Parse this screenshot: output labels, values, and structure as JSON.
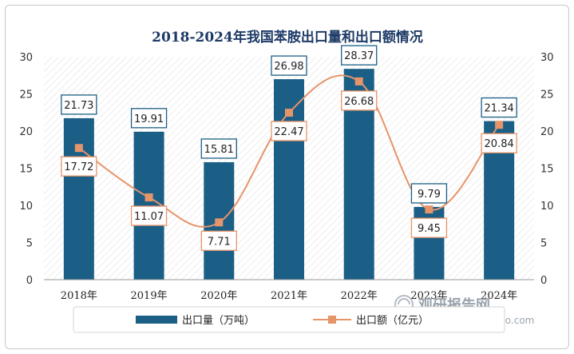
{
  "chart_data": {
    "type": "bar",
    "title": "2018-2024年我国苯胺出口量和出口额情况",
    "categories": [
      "2018年",
      "2019年",
      "2020年",
      "2021年",
      "2022年",
      "2023年",
      "2024年"
    ],
    "series": [
      {
        "name": "出口量（万吨）",
        "type": "bar",
        "axis": "left",
        "color": "#1b5f86",
        "values": [
          21.73,
          19.91,
          15.81,
          26.98,
          28.37,
          9.79,
          21.34
        ]
      },
      {
        "name": "出口额（亿元）",
        "type": "line",
        "axis": "right",
        "color": "#e6946a",
        "values": [
          17.72,
          11.07,
          7.71,
          22.47,
          26.68,
          9.45,
          20.84
        ]
      }
    ],
    "yticks": [
      "0",
      "5",
      "10",
      "15",
      "20",
      "25",
      "30"
    ],
    "ylim": [
      0,
      30
    ],
    "y2ticks": [
      "0",
      "5",
      "10",
      "15",
      "20",
      "25",
      "30"
    ],
    "y2lim": [
      0,
      30
    ],
    "grid": false,
    "legend_position": "bottom"
  },
  "watermark": {
    "brand": "观研报告网",
    "url": "chinabaogao.com"
  }
}
